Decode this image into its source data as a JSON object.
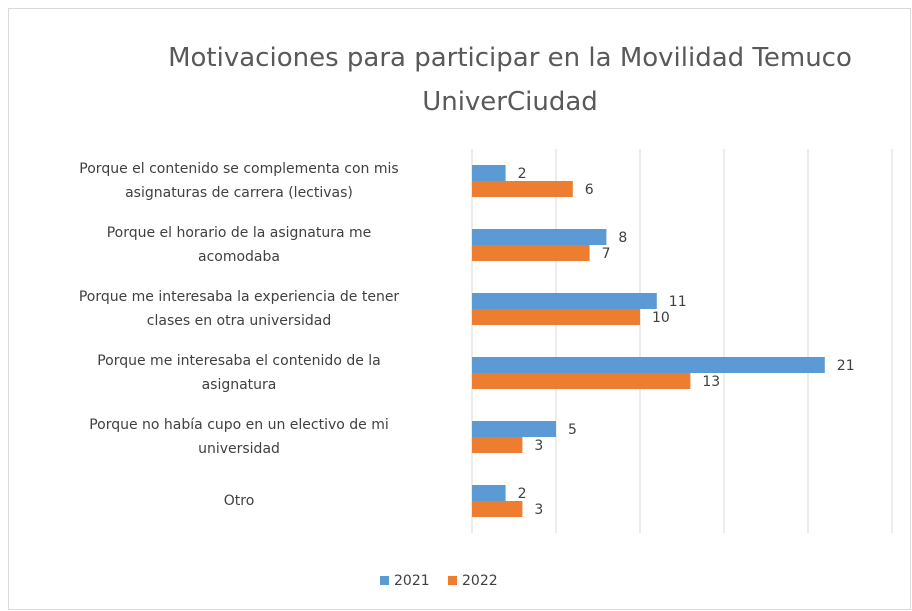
{
  "chart_data": {
    "type": "bar",
    "orientation": "horizontal",
    "title": "Motivaciones para participar en la Movilidad Temuco UniverCiudad",
    "categories": [
      "Porque el contenido se complementa con mis\nasignaturas de carrera (lectivas)",
      "Porque el horario de la asignatura me\nacomodaba",
      "Porque me interesaba la experiencia de tener\nclases en otra universidad",
      "Porque me interesaba el contenido de la\nasignatura",
      "Porque no había cupo en un electivo de mi\nuniversidad",
      "Otro"
    ],
    "series": [
      {
        "name": "2021",
        "color": "#5b9bd5",
        "values": [
          2,
          8,
          11,
          21,
          5,
          2
        ]
      },
      {
        "name": "2022",
        "color": "#ed7d31",
        "values": [
          6,
          7,
          10,
          13,
          3,
          3
        ]
      }
    ],
    "xlim": [
      0,
      25
    ],
    "xticks": [
      0,
      5,
      10,
      15,
      20,
      25
    ],
    "grid": true,
    "legend": "bottom"
  }
}
